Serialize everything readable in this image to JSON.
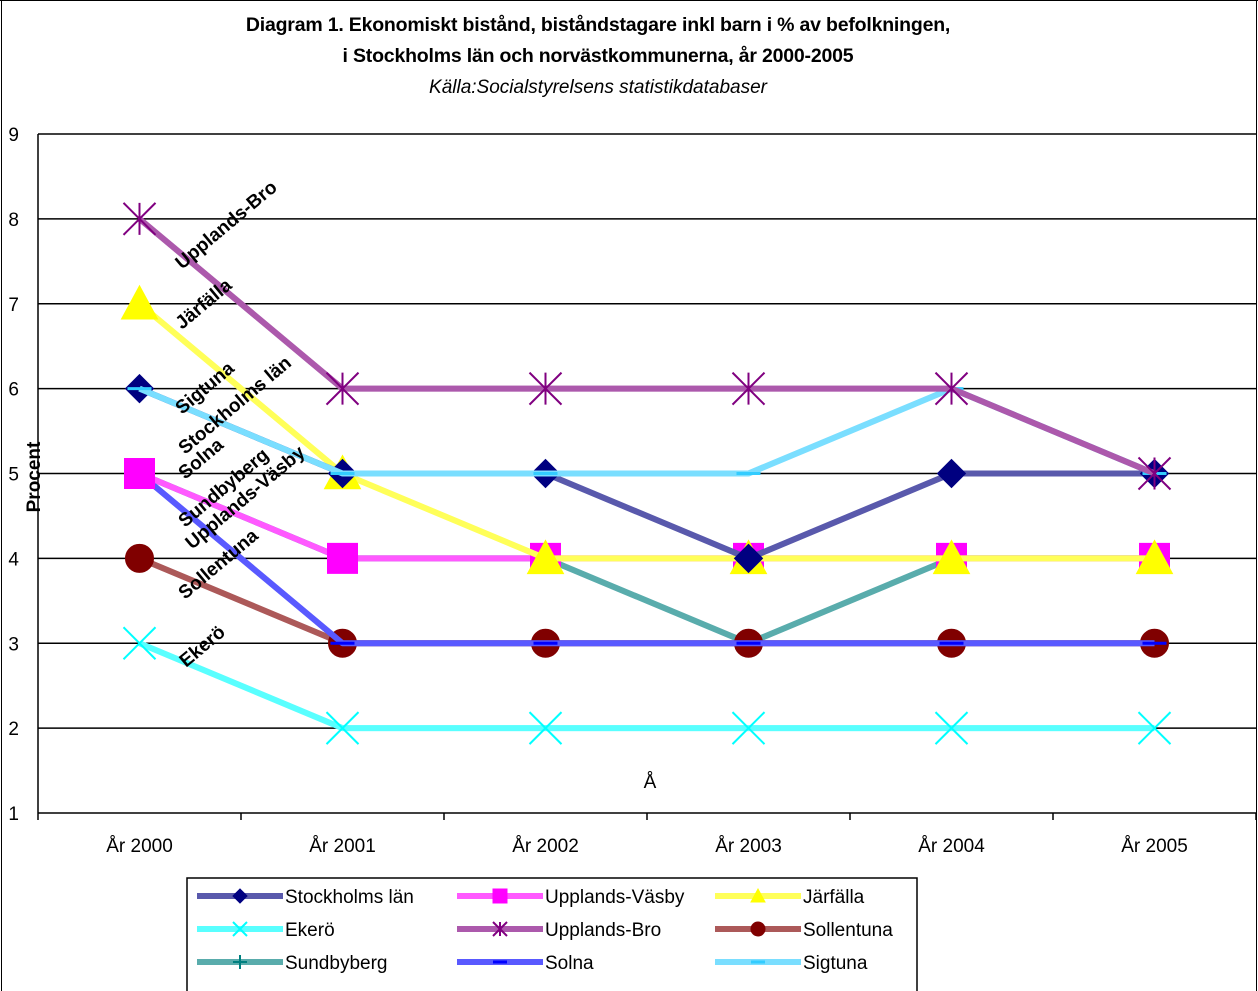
{
  "chart_data": {
    "type": "line",
    "title": "Diagram 1. Ekonomiskt bistånd, biståndstagare inkl barn i % av befolkningen,",
    "title_line2": "i Stockholms län och norvästkommunerna, år 2000-2005",
    "subtitle": "Källa:Socialstyrelsens statistikdatabaser",
    "ylabel": "Procent",
    "xlabel": "Å",
    "categories": [
      "År 2000",
      "År 2001",
      "År 2002",
      "År 2003",
      "År 2004",
      "År 2005"
    ],
    "ylim": [
      1,
      9
    ],
    "yticks": [
      "1",
      "2",
      "3",
      "4",
      "5",
      "6",
      "7",
      "8",
      "9"
    ],
    "grid": true,
    "legend_position": "bottom",
    "series": [
      {
        "name": "Stockholms län",
        "values": [
          6,
          5,
          5,
          4,
          5,
          5
        ],
        "color": "#000080",
        "marker": "diamond",
        "point_label": "Stockholms län"
      },
      {
        "name": "Upplands-Väsby",
        "values": [
          5,
          4,
          4,
          4,
          4,
          4
        ],
        "color": "#FF00FF",
        "marker": "square",
        "point_label": "Upplands-Väsby"
      },
      {
        "name": "Järfälla",
        "values": [
          7,
          5,
          4,
          4,
          4,
          4
        ],
        "color": "#FFFF00",
        "marker": "triangle",
        "point_label": "Järfälla"
      },
      {
        "name": "Ekerö",
        "values": [
          3,
          2,
          2,
          2,
          2,
          2
        ],
        "color": "#00FFFF",
        "marker": "x",
        "point_label": "Ekerö"
      },
      {
        "name": "Upplands-Bro",
        "values": [
          8,
          6,
          6,
          6,
          6,
          5
        ],
        "color": "#800080",
        "marker": "star",
        "point_label": "Upplands-Bro"
      },
      {
        "name": "Sollentuna",
        "values": [
          4,
          3,
          3,
          3,
          3,
          3
        ],
        "color": "#800000",
        "marker": "circle",
        "point_label": "Sollentuna"
      },
      {
        "name": "Sundbyberg",
        "values": [
          5,
          4,
          4,
          3,
          4,
          4
        ],
        "color": "#008080",
        "marker": "plus",
        "point_label": "Sundbyberg"
      },
      {
        "name": "Solna",
        "values": [
          5,
          3,
          3,
          3,
          3,
          3
        ],
        "color": "#0000FF",
        "marker": "dash",
        "point_label": "Solna"
      },
      {
        "name": "Sigtuna",
        "values": [
          6,
          5,
          5,
          5,
          6,
          5
        ],
        "color": "#33CCFF",
        "marker": "dash",
        "point_label": "Sigtuna"
      }
    ]
  }
}
